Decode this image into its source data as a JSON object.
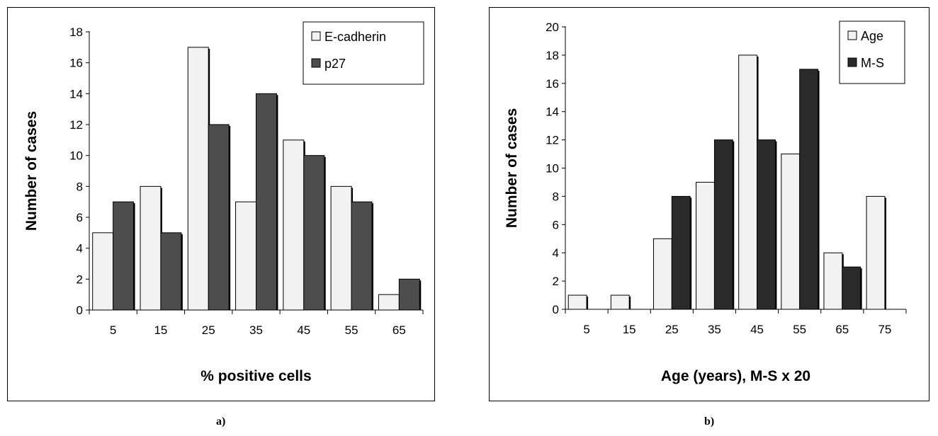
{
  "captions": {
    "a": "a)",
    "b": "b)"
  },
  "colors": {
    "light": "#f2f2f2",
    "dark_a": "#4d4d4d",
    "dark_b": "#2a2a2a",
    "axis": "#000000"
  },
  "chart_data": [
    {
      "type": "bar",
      "categories": [
        "5",
        "15",
        "25",
        "35",
        "45",
        "55",
        "65"
      ],
      "series": [
        {
          "name": "E-cadherin",
          "values": [
            5,
            8,
            17,
            7,
            11,
            8,
            1
          ]
        },
        {
          "name": "p27",
          "values": [
            7,
            5,
            12,
            14,
            10,
            7,
            2
          ]
        }
      ],
      "yticks": [
        "0",
        "2",
        "4",
        "6",
        "8",
        "10",
        "12",
        "14",
        "16",
        "18"
      ],
      "ylim": [
        0,
        18
      ],
      "xlabel": "% positive cells",
      "ylabel": "Number of cases",
      "grid": false,
      "legend": "top-right"
    },
    {
      "type": "bar",
      "categories": [
        "5",
        "15",
        "25",
        "35",
        "45",
        "55",
        "65",
        "75"
      ],
      "series": [
        {
          "name": "Age",
          "values": [
            1,
            1,
            5,
            9,
            18,
            11,
            4,
            8
          ]
        },
        {
          "name": "M-S",
          "values": [
            null,
            null,
            8,
            12,
            12,
            17,
            3,
            null
          ]
        }
      ],
      "yticks": [
        "0",
        "2",
        "4",
        "6",
        "8",
        "10",
        "12",
        "14",
        "16",
        "18",
        "20"
      ],
      "ylim": [
        0,
        20
      ],
      "xlabel": "Age (years), M-S x 20",
      "ylabel": "Number of cases",
      "grid": false,
      "legend": "top-right"
    }
  ]
}
